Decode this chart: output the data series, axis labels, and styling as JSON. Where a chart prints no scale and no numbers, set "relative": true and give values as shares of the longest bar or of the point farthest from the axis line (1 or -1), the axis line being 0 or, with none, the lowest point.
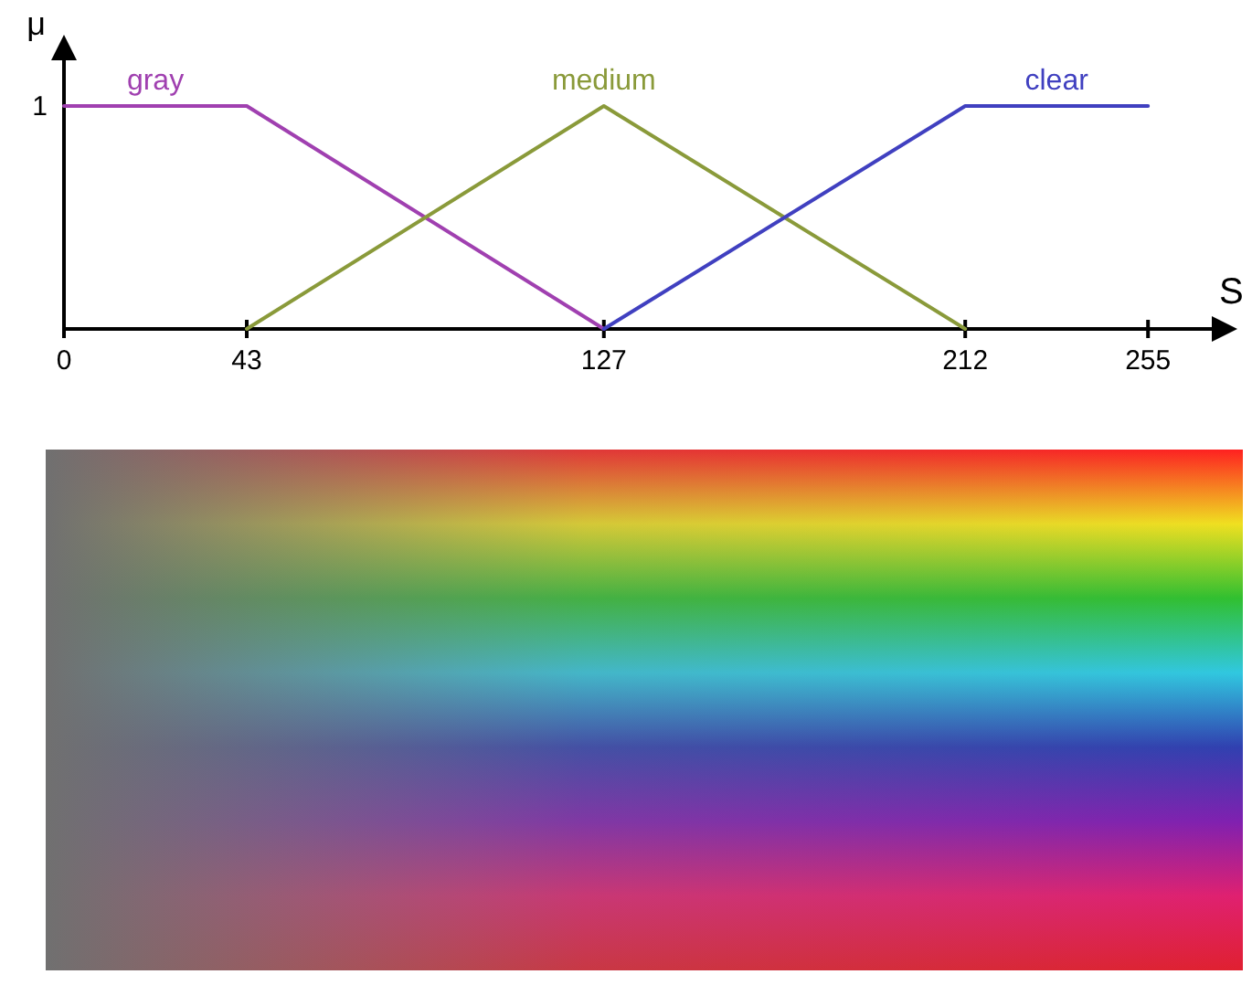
{
  "chart_data": {
    "type": "line",
    "xlabel": "S",
    "ylabel": "μ",
    "xlim": [
      0,
      270
    ],
    "xticks": [
      0,
      43,
      127,
      212,
      255
    ],
    "relative": true,
    "annotations": [
      "1"
    ],
    "marker": "none",
    "line_style": "solid",
    "series": [
      {
        "name": "gray",
        "color": "#a040b0",
        "x": [
          0,
          43,
          127
        ],
        "values": [
          1,
          1,
          0
        ]
      },
      {
        "name": "medium",
        "color": "#8a9a3a",
        "x": [
          43,
          127,
          212
        ],
        "values": [
          0,
          1,
          0
        ]
      },
      {
        "name": "clear",
        "color": "#4040c0",
        "x": [
          127,
          212,
          255
        ],
        "values": [
          0,
          1,
          1
        ]
      }
    ]
  }
}
